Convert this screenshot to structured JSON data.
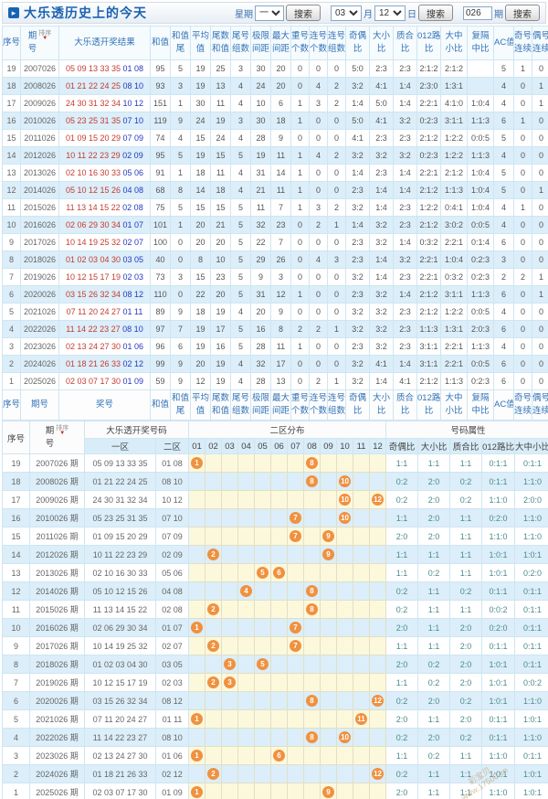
{
  "header": {
    "title": "大乐透历史上的今天",
    "controls": {
      "week_label": "星期",
      "week_value": "一",
      "search_label": "搜索",
      "month_value": "03",
      "month_label": "月",
      "day_value": "12",
      "day_label": "日",
      "issue_value": "026",
      "issue_label": "期"
    }
  },
  "colors": {
    "accent_blue": "#3273b6",
    "front_red": "#c53b2e",
    "back_blue": "#2438c2",
    "ball_orange": "#f0913f",
    "alt_row_blue": "#dbeef9",
    "ball_cell_yellow": "#fcf8dc"
  },
  "table1": {
    "sort_label": "排序",
    "columns": [
      [
        "序号"
      ],
      [
        "期",
        "号"
      ],
      [
        "大乐透开奖结果"
      ],
      [
        "和值"
      ],
      [
        "和值",
        "尾"
      ],
      [
        "平均",
        "值"
      ],
      [
        "尾数",
        "和值"
      ],
      [
        "尾号",
        "组数"
      ],
      [
        "极限",
        "间距"
      ],
      [
        "最大",
        "间距"
      ],
      [
        "重号",
        "个数"
      ],
      [
        "连号",
        "个数"
      ],
      [
        "连号",
        "组数"
      ],
      [
        "奇偶",
        "比"
      ],
      [
        "大小",
        "比"
      ],
      [
        "质合",
        "比"
      ],
      [
        "012路",
        "比"
      ],
      [
        "大中",
        "小比"
      ],
      [
        "复隔",
        "中比"
      ],
      [
        "AC值"
      ],
      [
        "奇号",
        "连续"
      ],
      [
        "偶号",
        "连续"
      ]
    ],
    "footer_columns": [
      [
        "序号"
      ],
      [
        "期号"
      ],
      [
        "奖号"
      ],
      [
        "和值"
      ],
      [
        "和值",
        "尾"
      ],
      [
        "平均",
        "值"
      ],
      [
        "尾数",
        "和值"
      ],
      [
        "尾号",
        "组数"
      ],
      [
        "极限",
        "间距"
      ],
      [
        "最大",
        "间距"
      ],
      [
        "重号",
        "个数"
      ],
      [
        "连号",
        "个数"
      ],
      [
        "连号",
        "组数"
      ],
      [
        "奇偶",
        "比"
      ],
      [
        "大小",
        "比"
      ],
      [
        "质合",
        "比"
      ],
      [
        "012路",
        "比"
      ],
      [
        "大中",
        "小比"
      ],
      [
        "复隔",
        "中比"
      ],
      [
        "AC值"
      ],
      [
        "奇号",
        "连续"
      ],
      [
        "偶号",
        "连续"
      ]
    ],
    "rows": [
      [
        "19",
        "2007026",
        "05 09 13 33 35",
        "01 08",
        "95",
        "5",
        "19",
        "25",
        "3",
        "30",
        "20",
        "0",
        "0",
        "0",
        "5:0",
        "2:3",
        "2:3",
        "2:1:2",
        "2:1:2",
        "",
        "5",
        "1",
        "0"
      ],
      [
        "18",
        "2008026",
        "01 21 22 24 25",
        "08 10",
        "93",
        "3",
        "19",
        "13",
        "4",
        "24",
        "20",
        "0",
        "4",
        "2",
        "3:2",
        "4:1",
        "1:4",
        "2:3:0",
        "1:3:1",
        "",
        "4",
        "0",
        "1"
      ],
      [
        "17",
        "2009026",
        "24 30 31 32 34",
        "10 12",
        "151",
        "1",
        "30",
        "11",
        "4",
        "10",
        "6",
        "1",
        "3",
        "2",
        "1:4",
        "5:0",
        "1:4",
        "2:2:1",
        "4:1:0",
        "1:0:4",
        "4",
        "0",
        "1"
      ],
      [
        "16",
        "2010026",
        "05 23 25 31 35",
        "07 10",
        "119",
        "9",
        "24",
        "19",
        "3",
        "30",
        "18",
        "1",
        "0",
        "0",
        "5:0",
        "4:1",
        "3:2",
        "0:2:3",
        "3:1:1",
        "1:1:3",
        "6",
        "1",
        "0"
      ],
      [
        "15",
        "2011026",
        "01 09 15 20 29",
        "07 09",
        "74",
        "4",
        "15",
        "24",
        "4",
        "28",
        "9",
        "0",
        "0",
        "0",
        "4:1",
        "2:3",
        "2:3",
        "2:1:2",
        "1:2:2",
        "0:0:5",
        "5",
        "0",
        "0"
      ],
      [
        "14",
        "2012026",
        "10 11 22 23 29",
        "02 09",
        "95",
        "5",
        "19",
        "15",
        "5",
        "19",
        "11",
        "1",
        "4",
        "2",
        "3:2",
        "3:2",
        "3:2",
        "0:2:3",
        "1:2:2",
        "1:1:3",
        "4",
        "0",
        "0"
      ],
      [
        "13",
        "2013026",
        "02 10 16 30 33",
        "05 06",
        "91",
        "1",
        "18",
        "11",
        "4",
        "31",
        "14",
        "1",
        "0",
        "0",
        "1:4",
        "2:3",
        "1:4",
        "2:2:1",
        "2:1:2",
        "1:0:4",
        "5",
        "0",
        "0"
      ],
      [
        "12",
        "2014026",
        "05 10 12 15 26",
        "04 08",
        "68",
        "8",
        "14",
        "18",
        "4",
        "21",
        "11",
        "1",
        "0",
        "0",
        "2:3",
        "1:4",
        "1:4",
        "2:1:2",
        "1:1:3",
        "1:0:4",
        "5",
        "0",
        "1"
      ],
      [
        "11",
        "2015026",
        "11 13 14 15 22",
        "02 08",
        "75",
        "5",
        "15",
        "15",
        "5",
        "11",
        "7",
        "1",
        "3",
        "2",
        "3:2",
        "1:4",
        "2:3",
        "1:2:2",
        "0:4:1",
        "1:0:4",
        "4",
        "1",
        "0"
      ],
      [
        "10",
        "2016026",
        "02 06 29 30 34",
        "01 07",
        "101",
        "1",
        "20",
        "21",
        "5",
        "32",
        "23",
        "0",
        "2",
        "1",
        "1:4",
        "3:2",
        "2:3",
        "2:1:2",
        "3:0:2",
        "0:0:5",
        "4",
        "0",
        "0"
      ],
      [
        "9",
        "2017026",
        "10 14 19 25 32",
        "02 07",
        "100",
        "0",
        "20",
        "20",
        "5",
        "22",
        "7",
        "0",
        "0",
        "0",
        "2:3",
        "3:2",
        "1:4",
        "0:3:2",
        "2:2:1",
        "0:1:4",
        "6",
        "0",
        "0"
      ],
      [
        "8",
        "2018026",
        "01 02 03 04 30",
        "03 05",
        "40",
        "0",
        "8",
        "10",
        "5",
        "29",
        "26",
        "0",
        "4",
        "3",
        "2:3",
        "1:4",
        "3:2",
        "2:2:1",
        "1:0:4",
        "0:2:3",
        "3",
        "0",
        "0"
      ],
      [
        "7",
        "2019026",
        "10 12 15 17 19",
        "02 03",
        "73",
        "3",
        "15",
        "23",
        "5",
        "9",
        "3",
        "0",
        "0",
        "0",
        "3:2",
        "1:4",
        "2:3",
        "2:2:1",
        "0:3:2",
        "0:2:3",
        "2",
        "2",
        "1"
      ],
      [
        "6",
        "2020026",
        "03 15 26 32 34",
        "08 12",
        "110",
        "0",
        "22",
        "20",
        "5",
        "31",
        "12",
        "1",
        "0",
        "0",
        "2:3",
        "3:2",
        "1:4",
        "2:1:2",
        "3:1:1",
        "1:1:3",
        "6",
        "0",
        "1"
      ],
      [
        "5",
        "2021026",
        "07 11 20 24 27",
        "01 11",
        "89",
        "9",
        "18",
        "19",
        "4",
        "20",
        "9",
        "0",
        "0",
        "0",
        "3:2",
        "3:2",
        "2:3",
        "2:1:2",
        "1:2:2",
        "0:0:5",
        "4",
        "0",
        "0"
      ],
      [
        "4",
        "2022026",
        "11 14 22 23 27",
        "08 10",
        "97",
        "7",
        "19",
        "17",
        "5",
        "16",
        "8",
        "2",
        "2",
        "1",
        "3:2",
        "3:2",
        "2:3",
        "1:1:3",
        "1:3:1",
        "2:0:3",
        "6",
        "0",
        "0"
      ],
      [
        "3",
        "2023026",
        "02 13 24 27 30",
        "01 06",
        "96",
        "6",
        "19",
        "16",
        "5",
        "28",
        "11",
        "1",
        "0",
        "0",
        "2:3",
        "3:2",
        "2:3",
        "3:1:1",
        "2:2:1",
        "1:1:3",
        "4",
        "0",
        "0"
      ],
      [
        "2",
        "2024026",
        "01 18 21 26 33",
        "02 12",
        "99",
        "9",
        "20",
        "19",
        "4",
        "32",
        "17",
        "0",
        "0",
        "0",
        "3:2",
        "4:1",
        "1:4",
        "3:1:1",
        "2:2:1",
        "0:0:5",
        "6",
        "0",
        "0"
      ],
      [
        "1",
        "2025026",
        "02 03 07 17 30",
        "01 09",
        "59",
        "9",
        "12",
        "19",
        "4",
        "28",
        "13",
        "0",
        "2",
        "1",
        "3:2",
        "1:4",
        "4:1",
        "2:1:2",
        "1:1:3",
        "0:2:3",
        "6",
        "0",
        "0"
      ]
    ]
  },
  "table2": {
    "seq_label": "序号",
    "period_top": "期",
    "period_bottom": "号",
    "sort_label": "排序",
    "group_numbers": "大乐透开奖号码",
    "group_dist": "二区分布",
    "group_props": "号码属性",
    "zone1_label": "一区",
    "zone2_label": "二区",
    "ball_columns": [
      "01",
      "02",
      "03",
      "04",
      "05",
      "06",
      "07",
      "08",
      "09",
      "10",
      "11",
      "12"
    ],
    "prop_columns": [
      "奇偶比",
      "大小比",
      "质合比",
      "012路比",
      "大中小比"
    ],
    "rows": [
      {
        "seq": "19",
        "period": "2007026 期",
        "front": "05 09 13 33 35",
        "back": "01 08",
        "balls": [
          1,
          8
        ],
        "props": [
          "1:1",
          "1:1",
          "1:1",
          "0:1:1",
          "0:1:1"
        ]
      },
      {
        "seq": "18",
        "period": "2008026 期",
        "front": "01 21 22 24 25",
        "back": "08 10",
        "balls": [
          8,
          10
        ],
        "props": [
          "0:2",
          "2:0",
          "0:2",
          "0:1:1",
          "1:1:0"
        ]
      },
      {
        "seq": "17",
        "period": "2009026 期",
        "front": "24 30 31 32 34",
        "back": "10 12",
        "balls": [
          10,
          12
        ],
        "props": [
          "0:2",
          "2:0",
          "0:2",
          "1:1:0",
          "2:0:0"
        ]
      },
      {
        "seq": "16",
        "period": "2010026 期",
        "front": "05 23 25 31 35",
        "back": "07 10",
        "balls": [
          7,
          10
        ],
        "props": [
          "1:1",
          "2:0",
          "1:1",
          "0:2:0",
          "1:1:0"
        ]
      },
      {
        "seq": "15",
        "period": "2011026 期",
        "front": "01 09 15 20 29",
        "back": "07 09",
        "balls": [
          7,
          9
        ],
        "props": [
          "2:0",
          "2:0",
          "1:1",
          "1:1:0",
          "1:1:0"
        ]
      },
      {
        "seq": "14",
        "period": "2012026 期",
        "front": "10 11 22 23 29",
        "back": "02 09",
        "balls": [
          2,
          9
        ],
        "props": [
          "1:1",
          "1:1",
          "1:1",
          "1:0:1",
          "1:0:1"
        ]
      },
      {
        "seq": "13",
        "period": "2013026 期",
        "front": "02 10 16 30 33",
        "back": "05 06",
        "balls": [
          5,
          6
        ],
        "props": [
          "1:1",
          "0:2",
          "1:1",
          "1:0:1",
          "0:2:0"
        ]
      },
      {
        "seq": "12",
        "period": "2014026 期",
        "front": "05 10 12 15 26",
        "back": "04 08",
        "balls": [
          4,
          8
        ],
        "props": [
          "0:2",
          "1:1",
          "0:2",
          "0:1:1",
          "0:1:1"
        ]
      },
      {
        "seq": "11",
        "period": "2015026 期",
        "front": "11 13 14 15 22",
        "back": "02 08",
        "balls": [
          2,
          8
        ],
        "props": [
          "0:2",
          "1:1",
          "1:1",
          "0:0:2",
          "0:1:1"
        ]
      },
      {
        "seq": "10",
        "period": "2016026 期",
        "front": "02 06 29 30 34",
        "back": "01 07",
        "balls": [
          1,
          7
        ],
        "props": [
          "2:0",
          "1:1",
          "2:0",
          "0:2:0",
          "0:1:1"
        ]
      },
      {
        "seq": "9",
        "period": "2017026 期",
        "front": "10 14 19 25 32",
        "back": "02 07",
        "balls": [
          2,
          7
        ],
        "props": [
          "1:1",
          "1:1",
          "2:0",
          "0:1:1",
          "0:1:1"
        ]
      },
      {
        "seq": "8",
        "period": "2018026 期",
        "front": "01 02 03 04 30",
        "back": "03 05",
        "balls": [
          3,
          5
        ],
        "props": [
          "2:0",
          "0:2",
          "2:0",
          "1:0:1",
          "0:1:1"
        ]
      },
      {
        "seq": "7",
        "period": "2019026 期",
        "front": "10 12 15 17 19",
        "back": "02 03",
        "balls": [
          2,
          3
        ],
        "props": [
          "1:1",
          "0:2",
          "2:0",
          "1:0:1",
          "0:0:2"
        ]
      },
      {
        "seq": "6",
        "period": "2020026 期",
        "front": "03 15 26 32 34",
        "back": "08 12",
        "balls": [
          8,
          12
        ],
        "props": [
          "0:2",
          "2:0",
          "0:2",
          "1:0:1",
          "1:1:0"
        ]
      },
      {
        "seq": "5",
        "period": "2021026 期",
        "front": "07 11 20 24 27",
        "back": "01 11",
        "balls": [
          1,
          11
        ],
        "props": [
          "2:0",
          "1:1",
          "2:0",
          "0:1:1",
          "1:0:1"
        ]
      },
      {
        "seq": "4",
        "period": "2022026 期",
        "front": "11 14 22 23 27",
        "back": "08 10",
        "balls": [
          8,
          10
        ],
        "props": [
          "0:2",
          "2:0",
          "0:2",
          "0:1:1",
          "1:1:0"
        ]
      },
      {
        "seq": "3",
        "period": "2023026 期",
        "front": "02 13 24 27 30",
        "back": "01 06",
        "balls": [
          1,
          6
        ],
        "props": [
          "1:1",
          "0:2",
          "1:1",
          "1:1:0",
          "0:1:1"
        ]
      },
      {
        "seq": "2",
        "period": "2024026 期",
        "front": "01 18 21 26 33",
        "back": "02 12",
        "balls": [
          2,
          12
        ],
        "props": [
          "0:2",
          "1:1",
          "1:1",
          "1:0:1",
          "1:0:1"
        ]
      },
      {
        "seq": "1",
        "period": "2025026 期",
        "front": "02 03 07 17 30",
        "back": "01 09",
        "balls": [
          1,
          9
        ],
        "props": [
          "2:0",
          "1:1",
          "1:1",
          "1:1:0",
          "1:0:1"
        ]
      }
    ]
  },
  "watermark": {
    "line1": "彩宝贝",
    "line2": "www.17500.cn"
  }
}
